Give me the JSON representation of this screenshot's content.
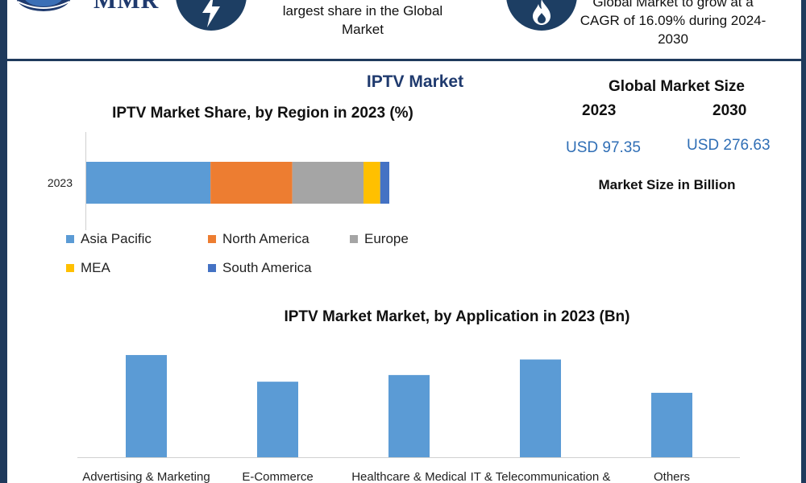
{
  "logo": {
    "text": "MMR"
  },
  "highlights": [
    {
      "icon": "lightning-bolt-icon",
      "text_lines": [
        "largest share in the Global",
        "Market"
      ]
    },
    {
      "icon": "flame-icon",
      "text_lines": [
        "Global Market to grow at a",
        "CAGR of 16.09% during 2024-",
        "2030"
      ]
    }
  ],
  "main_title": "IPTV Market",
  "market_size": {
    "title": "Global Market Size",
    "years": [
      "2023",
      "2030"
    ],
    "values": [
      "USD 97.35",
      "USD 276.63"
    ],
    "unit": "Market Size in Billion"
  },
  "colors": {
    "frame": "#1f3a5c",
    "accent": "#1f3a6e",
    "value_blue": "#2f6eb5",
    "bar_blue": "#5b9bd5"
  },
  "chart_data": [
    {
      "type": "bar",
      "orientation": "horizontal-stacked",
      "title": "IPTV Market Share, by Region in 2023 (%)",
      "categories": [
        "2023"
      ],
      "series": [
        {
          "name": "Asia Pacific",
          "values": [
            41
          ],
          "color": "#5b9bd5"
        },
        {
          "name": "North America",
          "values": [
            27
          ],
          "color": "#ed7d31"
        },
        {
          "name": "Europe",
          "values": [
            23.5
          ],
          "color": "#a5a5a5"
        },
        {
          "name": "MEA",
          "values": [
            5.5
          ],
          "color": "#ffc000"
        },
        {
          "name": "South America",
          "values": [
            3
          ],
          "color": "#4472c4"
        }
      ],
      "xlim": [
        0,
        100
      ],
      "legend": "bottom",
      "grid": false
    },
    {
      "type": "bar",
      "title": "IPTV Market Market, by Application in 2023 (Bn)",
      "categories": [
        "Advertising & Marketing",
        "E-Commerce",
        "Healthcare & Medical",
        "IT & Telecommunication &",
        "Others"
      ],
      "values": [
        23,
        17,
        18.5,
        22,
        14.5
      ],
      "ylim": [
        0,
        25
      ],
      "grid": false,
      "color": "#5b9bd5"
    }
  ]
}
